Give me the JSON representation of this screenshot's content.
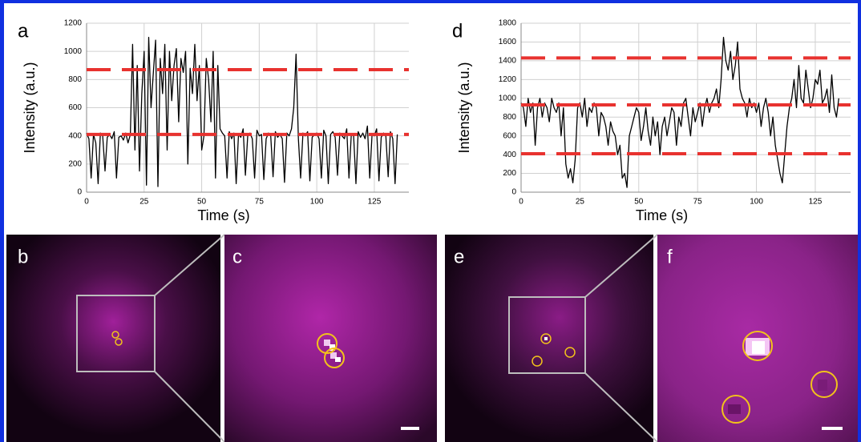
{
  "chart_data": [
    {
      "type": "line",
      "panel": "a",
      "y_label": "Intensity (a.u.)",
      "x_label": "Time (s)",
      "xlim": [
        0,
        140
      ],
      "ylim": [
        0,
        1200
      ],
      "xticks": [
        0,
        25,
        50,
        75,
        100,
        125
      ],
      "yticks": [
        0,
        200,
        400,
        600,
        800,
        1000,
        1200
      ],
      "grid": true,
      "hlines": [
        410,
        870
      ],
      "hline_color": "#e8322f",
      "x": [
        0,
        1,
        2,
        3,
        4,
        5,
        6,
        7,
        8,
        9,
        10,
        11,
        12,
        13,
        14,
        15,
        16,
        17,
        18,
        19,
        20,
        21,
        22,
        23,
        24,
        25,
        26,
        27,
        28,
        29,
        30,
        31,
        32,
        33,
        34,
        35,
        36,
        37,
        38,
        39,
        40,
        41,
        42,
        43,
        44,
        45,
        46,
        47,
        48,
        49,
        50,
        51,
        52,
        53,
        54,
        55,
        56,
        57,
        58,
        59,
        60,
        61,
        62,
        63,
        64,
        65,
        66,
        67,
        68,
        69,
        70,
        71,
        72,
        73,
        74,
        75,
        76,
        77,
        78,
        79,
        80,
        81,
        82,
        83,
        84,
        85,
        86,
        87,
        88,
        89,
        90,
        91,
        92,
        93,
        94,
        95,
        96,
        97,
        98,
        99,
        100,
        101,
        102,
        103,
        104,
        105,
        106,
        107,
        108,
        109,
        110,
        111,
        112,
        113,
        114,
        115,
        116,
        117,
        118,
        119,
        120,
        121,
        122,
        123,
        124,
        125,
        126,
        127,
        128,
        129,
        130,
        131,
        132,
        133,
        134,
        135
      ],
      "series": [
        {
          "color": "#000000",
          "values": [
            420,
            380,
            100,
            410,
            350,
            60,
            420,
            400,
            150,
            390,
            410,
            380,
            430,
            100,
            390,
            400,
            370,
            420,
            350,
            410,
            1050,
            300,
            900,
            150,
            700,
            1000,
            50,
            1100,
            600,
            850,
            1080,
            40,
            950,
            700,
            1050,
            300,
            1000,
            650,
            900,
            1020,
            500,
            950,
            850,
            1000,
            200,
            880,
            700,
            1050,
            650,
            900,
            300,
            400,
            950,
            800,
            500,
            1000,
            100,
            900,
            450,
            420,
            400,
            100,
            430,
            380,
            420,
            60,
            410,
            390,
            450,
            120,
            400,
            420,
            380,
            100,
            440,
            400,
            410,
            90,
            380,
            420,
            400,
            110,
            430,
            390,
            410,
            380,
            70,
            420,
            400,
            450,
            600,
            980,
            380,
            100,
            420,
            400,
            430,
            80,
            390,
            410,
            420,
            380,
            100,
            440,
            400,
            60,
            410,
            430,
            390,
            120,
            420,
            400,
            380,
            450,
            100,
            410,
            400,
            60,
            430,
            390,
            420,
            380,
            470,
            100,
            410,
            400,
            450,
            80,
            390,
            420,
            400,
            110,
            430,
            380,
            60,
            410
          ]
        }
      ]
    },
    {
      "type": "line",
      "panel": "d",
      "y_label": "Intensity (a.u.)",
      "x_label": "Time (s)",
      "xlim": [
        0,
        140
      ],
      "ylim": [
        0,
        1800
      ],
      "xticks": [
        0,
        25,
        50,
        75,
        100,
        125
      ],
      "yticks": [
        0,
        200,
        400,
        600,
        800,
        1000,
        1200,
        1400,
        1600,
        1800
      ],
      "grid": true,
      "hlines": [
        410,
        930,
        1430
      ],
      "hline_color": "#e8322f",
      "x": [
        0,
        1,
        2,
        3,
        4,
        5,
        6,
        7,
        8,
        9,
        10,
        11,
        12,
        13,
        14,
        15,
        16,
        17,
        18,
        19,
        20,
        21,
        22,
        23,
        24,
        25,
        26,
        27,
        28,
        29,
        30,
        31,
        32,
        33,
        34,
        35,
        36,
        37,
        38,
        39,
        40,
        41,
        42,
        43,
        44,
        45,
        46,
        47,
        48,
        49,
        50,
        51,
        52,
        53,
        54,
        55,
        56,
        57,
        58,
        59,
        60,
        61,
        62,
        63,
        64,
        65,
        66,
        67,
        68,
        69,
        70,
        71,
        72,
        73,
        74,
        75,
        76,
        77,
        78,
        79,
        80,
        81,
        82,
        83,
        84,
        85,
        86,
        87,
        88,
        89,
        90,
        91,
        92,
        93,
        94,
        95,
        96,
        97,
        98,
        99,
        100,
        101,
        102,
        103,
        104,
        105,
        106,
        107,
        108,
        109,
        110,
        111,
        112,
        113,
        114,
        115,
        116,
        117,
        118,
        119,
        120,
        121,
        122,
        123,
        124,
        125,
        126,
        127,
        128,
        129,
        130,
        131,
        132,
        133,
        134,
        135
      ],
      "series": [
        {
          "color": "#000000",
          "values": [
            950,
            900,
            700,
            1000,
            850,
            950,
            500,
            900,
            1000,
            800,
            950,
            900,
            750,
            1000,
            900,
            850,
            950,
            600,
            900,
            300,
            150,
            250,
            100,
            350,
            900,
            950,
            800,
            1000,
            700,
            900,
            850,
            950,
            900,
            600,
            850,
            800,
            700,
            500,
            750,
            650,
            600,
            400,
            500,
            150,
            200,
            50,
            600,
            700,
            800,
            900,
            850,
            550,
            700,
            900,
            650,
            500,
            800,
            600,
            750,
            400,
            700,
            800,
            600,
            750,
            900,
            850,
            500,
            800,
            700,
            950,
            1000,
            800,
            600,
            900,
            750,
            850,
            950,
            700,
            900,
            1000,
            850,
            950,
            1000,
            1100,
            900,
            1200,
            1650,
            1400,
            1300,
            1500,
            1200,
            1350,
            1600,
            1100,
            1000,
            950,
            800,
            1000,
            900,
            950,
            850,
            950,
            700,
            900,
            1000,
            850,
            600,
            800,
            500,
            350,
            200,
            100,
            400,
            700,
            900,
            1000,
            1200,
            900,
            1350,
            1000,
            950,
            1300,
            1100,
            900,
            1000,
            1200,
            1150,
            1300,
            950,
            1000,
            1100,
            850,
            1250,
            900,
            800,
            1000
          ]
        }
      ]
    }
  ],
  "image_panels": [
    {
      "label": "b"
    },
    {
      "label": "c"
    },
    {
      "label": "e"
    },
    {
      "label": "f"
    }
  ]
}
